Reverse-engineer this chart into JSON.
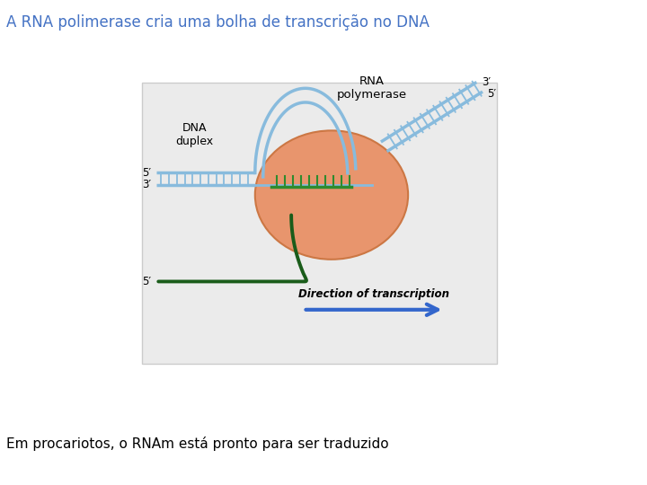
{
  "title": "A RNA polimerase cria uma bolha de transcrição no DNA",
  "subtitle": "Em procariotos, o RNAm está pronto para ser traduzido",
  "title_color": "#4472C4",
  "subtitle_color": "#000000",
  "bg_color": "#ffffff",
  "diagram_bg": "#ebebeb",
  "rna_pol_color": "#E8956D",
  "rna_pol_outline": "#cc7744",
  "dna_blue_color": "#88BBDD",
  "dna_dark_green": "#1A5C1A",
  "rna_green": "#2E8B2E",
  "arrow_color": "#3366CC",
  "label_dna_duplex": "DNA\nduplex",
  "label_rna_pol": "RNA\npolymerase",
  "label_direction": "Direction of transcription",
  "label_5prime_left": "5′",
  "label_3prime_left": "3′",
  "label_5prime_bottom": "5′",
  "label_3prime_right": "3′",
  "label_5prime_right": "5′"
}
